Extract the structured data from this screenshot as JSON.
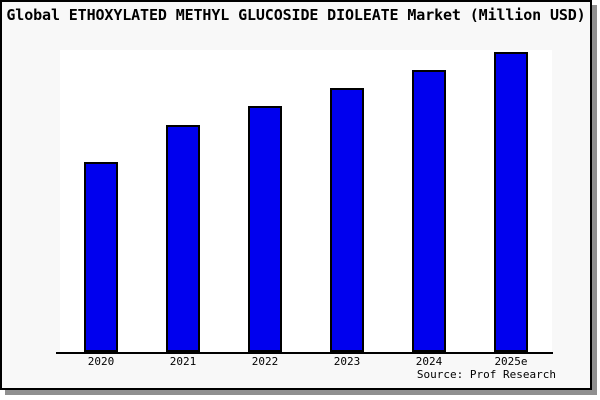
{
  "window": {
    "background": "#f8f8f8",
    "border_color": "#000000",
    "shadow_color": "#909090"
  },
  "chart_data": {
    "type": "bar",
    "title": "Global ETHOXYLATED METHYL GLUCOSIDE DIOLEATE Market (Million USD)",
    "categories": [
      "2020",
      "2021",
      "2022",
      "2023",
      "2024",
      "2025e"
    ],
    "values": [
      63.3,
      75.7,
      82.0,
      88.0,
      94.0,
      100.0
    ],
    "values_note": "relative bar heights, tallest bar (2025e) = 100; no numeric y-axis labels are shown in the image",
    "xlabel": "",
    "ylabel": "",
    "ylim": [
      0,
      100.7
    ],
    "grid": false,
    "legend": false,
    "bar_color": "#0000EE",
    "bar_border_color": "#000000",
    "plot_background": "#ffffff",
    "source": "Source: Prof Research"
  }
}
